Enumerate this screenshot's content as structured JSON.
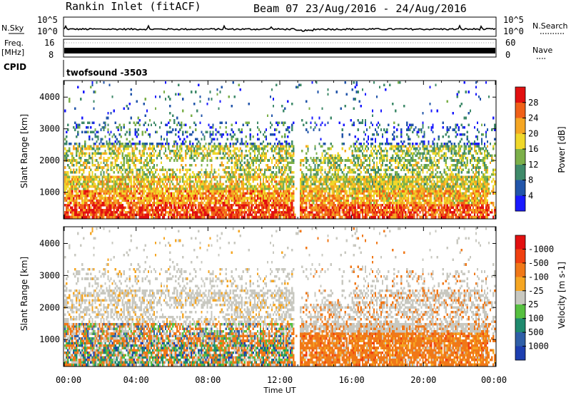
{
  "header": {
    "station": "Rankin Inlet (fitACF)",
    "beam": "Beam 07",
    "date_range": "23/Aug/2016 - 24/Aug/2016"
  },
  "panels": {
    "nsky_label": "N.Sky",
    "nsky_ticks": [
      "10^5",
      "10^0"
    ],
    "nsearch_label": "N.Search",
    "freq_label_1": "Freq.",
    "freq_label_2": "[MHz]",
    "freq_ticks": [
      "16",
      "8"
    ],
    "nave_ticks": [
      "60",
      "0"
    ],
    "nave_label": "Nave",
    "cpid_label": "CPID",
    "cpid_value": "twofsound -3503"
  },
  "chart_data": [
    {
      "type": "heatmap",
      "name": "power",
      "ylabel": "Slant Range [km]",
      "xlabel": "Time UT",
      "y_ticks": [
        1000,
        2000,
        3000,
        4000
      ],
      "ylim": [
        180,
        4500
      ],
      "x_ticks": [
        "00:00",
        "04:00",
        "08:00",
        "12:00",
        "16:00",
        "20:00",
        "00:00"
      ],
      "xlim_hours": [
        0,
        24
      ],
      "colorbar_label": "Power [dB]",
      "colorbar_ticks": [
        "4",
        "8",
        "12",
        "16",
        "20",
        "24",
        "28"
      ],
      "colorbar_colors": [
        "#1a1aff",
        "#2255aa",
        "#3f8a6a",
        "#7cb04a",
        "#f0d82a",
        "#f5a623",
        "#f06018",
        "#e21010"
      ]
    },
    {
      "type": "heatmap",
      "name": "velocity",
      "ylabel": "Slant Range [km]",
      "xlabel": "Time UT",
      "y_ticks": [
        1000,
        2000,
        3000,
        4000
      ],
      "ylim": [
        180,
        4500
      ],
      "x_ticks": [
        "00:00",
        "04:00",
        "08:00",
        "12:00",
        "16:00",
        "20:00",
        "00:00"
      ],
      "xlim_hours": [
        0,
        24
      ],
      "colorbar_label": "Velocity [m s-1]",
      "colorbar_ticks": [
        "1000",
        "500",
        "100",
        "25",
        "-25",
        "-100",
        "-500",
        "-1000"
      ],
      "colorbar_colors": [
        "#1d3fb0",
        "#2f5fa8",
        "#1f8a6e",
        "#56c040",
        "#c8c8c0",
        "#f5a623",
        "#f07818",
        "#f04010",
        "#e21010"
      ]
    }
  ]
}
